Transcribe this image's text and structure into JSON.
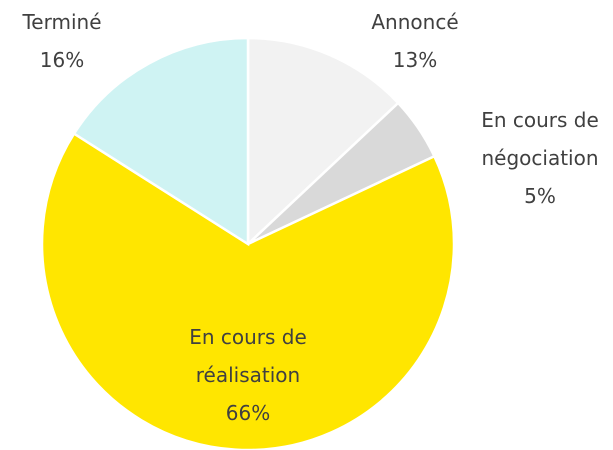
{
  "chart_data": {
    "type": "pie",
    "categories": [
      "Annoncé",
      "En cours de négociation",
      "En cours de réalisation",
      "Terminé"
    ],
    "values": [
      13,
      5,
      66,
      16
    ],
    "value_labels": [
      "13%",
      "5%",
      "66%",
      "16%"
    ],
    "colors": [
      "#f2f2f2",
      "#d9d9d9",
      "#ffe600",
      "#cff3f3"
    ]
  }
}
